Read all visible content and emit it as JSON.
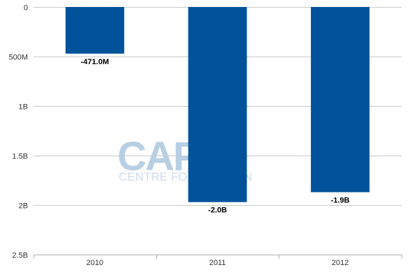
{
  "chart_data": {
    "type": "bar",
    "categories": [
      "2010",
      "2011",
      "2012"
    ],
    "values": [
      -471000000,
      -1970000000,
      -1870000000
    ],
    "data_labels": [
      "-471.0M",
      "-2.0B",
      "-1.9B"
    ],
    "y_ticks": [
      {
        "value": 0,
        "label": "0"
      },
      {
        "value": -500000000,
        "label": "500M"
      },
      {
        "value": -1000000000,
        "label": "1B"
      },
      {
        "value": -1500000000,
        "label": "1.5B"
      },
      {
        "value": -2000000000,
        "label": "2B"
      },
      {
        "value": -2500000000,
        "label": "2.5B"
      }
    ],
    "ylim": [
      -2500000000,
      0
    ],
    "y_axis_reversed": true,
    "grid": true,
    "bar_color": "#00529b",
    "grid_color": "#c8c8c8"
  },
  "watermark": {
    "logo_text": "CAPA",
    "tagline": "CENTRE FOR AVIATION"
  }
}
